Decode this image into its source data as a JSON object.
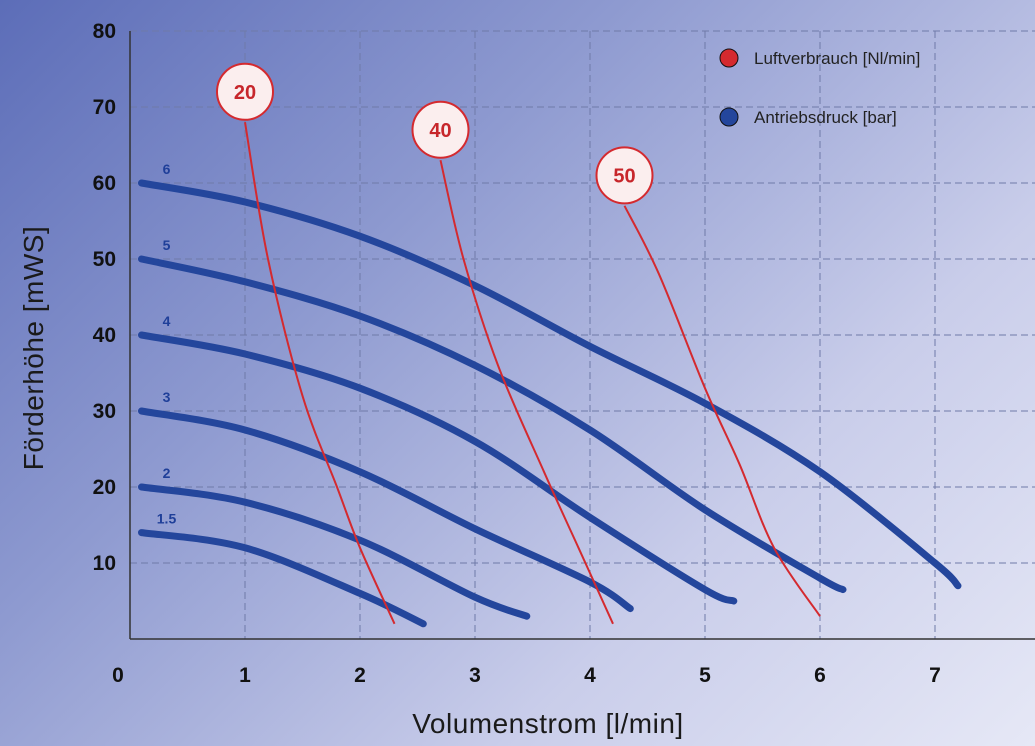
{
  "chart_data": {
    "type": "line",
    "xlabel": "Volumenstrom [l/min]",
    "ylabel": "Förderhöhe [mWS]",
    "xlim": [
      0,
      8
    ],
    "ylim": [
      0,
      80
    ],
    "xticks": [
      "0",
      "1",
      "2",
      "3",
      "4",
      "5",
      "6",
      "7"
    ],
    "yticks": [
      "10",
      "20",
      "30",
      "40",
      "50",
      "60",
      "70",
      "80"
    ],
    "grid": true,
    "legend_position": "top-right",
    "legend": [
      {
        "label": "Luftverbrauch [Nl/min]",
        "color": "#d42a2f"
      },
      {
        "label": "Antriebsdruck [bar]",
        "color": "#24469c"
      }
    ],
    "pressure_series": [
      {
        "name": "6",
        "color": "#24469c",
        "points": [
          [
            0.1,
            60
          ],
          [
            1,
            57.5
          ],
          [
            2,
            53
          ],
          [
            3,
            46.5
          ],
          [
            4,
            38.5
          ],
          [
            5,
            31
          ],
          [
            6,
            22
          ],
          [
            7,
            10
          ],
          [
            7.2,
            7
          ]
        ]
      },
      {
        "name": "5",
        "color": "#24469c",
        "points": [
          [
            0.1,
            50
          ],
          [
            1,
            47
          ],
          [
            2,
            42.5
          ],
          [
            3,
            36
          ],
          [
            4,
            27.5
          ],
          [
            5,
            17
          ],
          [
            6,
            8
          ],
          [
            6.2,
            6.5
          ]
        ]
      },
      {
        "name": "4",
        "color": "#24469c",
        "points": [
          [
            0.1,
            40
          ],
          [
            1,
            37.5
          ],
          [
            2,
            33
          ],
          [
            3,
            26
          ],
          [
            4,
            16
          ],
          [
            5,
            6.5
          ],
          [
            5.25,
            5
          ]
        ]
      },
      {
        "name": "3",
        "color": "#24469c",
        "points": [
          [
            0.1,
            30
          ],
          [
            1,
            27.5
          ],
          [
            2,
            22
          ],
          [
            3,
            14.5
          ],
          [
            4,
            7.5
          ],
          [
            4.35,
            4
          ]
        ]
      },
      {
        "name": "2",
        "color": "#24469c",
        "points": [
          [
            0.1,
            20
          ],
          [
            1,
            18
          ],
          [
            2,
            13
          ],
          [
            3,
            5.5
          ],
          [
            3.45,
            3
          ]
        ]
      },
      {
        "name": "1.5",
        "color": "#24469c",
        "points": [
          [
            0.1,
            14
          ],
          [
            1,
            12
          ],
          [
            2,
            6
          ],
          [
            2.55,
            2
          ]
        ]
      }
    ],
    "air_series": [
      {
        "name": "20",
        "color": "#d42a2f",
        "bubble": [
          1,
          72
        ],
        "points": [
          [
            1,
            68
          ],
          [
            1.2,
            50
          ],
          [
            1.5,
            32
          ],
          [
            1.8,
            20
          ],
          [
            2.0,
            12
          ],
          [
            2.3,
            2
          ]
        ]
      },
      {
        "name": "40",
        "color": "#d42a2f",
        "bubble": [
          2.7,
          67
        ],
        "points": [
          [
            2.7,
            63
          ],
          [
            2.9,
            50
          ],
          [
            3.2,
            36
          ],
          [
            3.6,
            22
          ],
          [
            3.9,
            12
          ],
          [
            4.2,
            2
          ]
        ]
      },
      {
        "name": "50",
        "color": "#d42a2f",
        "bubble": [
          4.3,
          61
        ],
        "points": [
          [
            4.3,
            57
          ],
          [
            4.6,
            48
          ],
          [
            5.0,
            33
          ],
          [
            5.3,
            23
          ],
          [
            5.6,
            12
          ],
          [
            6.0,
            3
          ]
        ]
      }
    ]
  }
}
